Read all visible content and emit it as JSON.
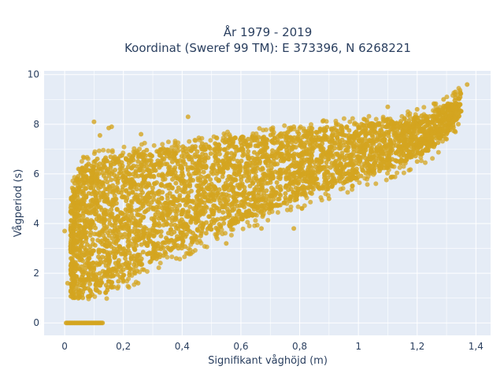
{
  "chart_data": {
    "type": "scatter",
    "title_line1": "År 1979 - 2019",
    "title_line2": "Koordinat (Sweref 99 TM): E 373396, N 6268221",
    "xlabel": "Signifikant våghöjd (m)",
    "ylabel": "Vågperiod (s)",
    "xlim": [
      -0.07,
      1.45
    ],
    "ylim": [
      -0.5,
      10.15
    ],
    "x_ticks": [
      0,
      0.2,
      0.4,
      0.6,
      0.8,
      1,
      1.2,
      1.4
    ],
    "x_tick_labels": [
      "0",
      "0,2",
      "0,4",
      "0,6",
      "0,8",
      "1",
      "1,2",
      "1,4"
    ],
    "y_ticks": [
      0,
      2,
      4,
      6,
      8,
      10
    ],
    "y_tick_labels": [
      "0",
      "2",
      "4",
      "6",
      "8",
      "10"
    ],
    "grid": true,
    "legend": "none",
    "colors": {
      "marker": "#d4a520",
      "plot_bg": "#e5ecf6",
      "grid": "#ffffff"
    },
    "band": {
      "x": [
        0.02,
        0.06,
        0.1,
        0.15,
        0.2,
        0.3,
        0.4,
        0.5,
        0.6,
        0.7,
        0.8,
        0.9,
        1.0,
        1.1,
        1.2,
        1.25,
        1.3,
        1.35
      ],
      "y_low": [
        1.0,
        1.0,
        1.1,
        1.2,
        1.7,
        2.5,
        3.0,
        3.6,
        4.1,
        4.6,
        5.0,
        5.4,
        5.8,
        6.2,
        6.7,
        7.0,
        7.6,
        8.4
      ],
      "y_high": [
        5.2,
        6.4,
        6.6,
        6.7,
        6.8,
        7.0,
        7.1,
        7.3,
        7.5,
        7.6,
        7.7,
        7.9,
        8.0,
        8.1,
        8.3,
        8.5,
        8.8,
        9.3
      ]
    },
    "zero_row": {
      "x_from": 0.005,
      "x_to": 0.13,
      "y": 0
    },
    "outliers": [
      {
        "x": 0.1,
        "y": 8.1
      },
      {
        "x": 0.16,
        "y": 7.9
      },
      {
        "x": 0.15,
        "y": 7.85
      },
      {
        "x": 0.42,
        "y": 8.3
      },
      {
        "x": 0.26,
        "y": 7.6
      },
      {
        "x": 0.12,
        "y": 7.55
      },
      {
        "x": 0.0,
        "y": 3.7
      },
      {
        "x": 0.01,
        "y": 1.6
      },
      {
        "x": 1.33,
        "y": 9.3
      },
      {
        "x": 1.37,
        "y": 9.6
      },
      {
        "x": 1.29,
        "y": 9.0
      },
      {
        "x": 1.34,
        "y": 8.0
      },
      {
        "x": 0.78,
        "y": 7.9
      },
      {
        "x": 1.2,
        "y": 8.6
      },
      {
        "x": 1.1,
        "y": 8.7
      },
      {
        "x": 0.67,
        "y": 3.8
      },
      {
        "x": 0.78,
        "y": 3.8
      },
      {
        "x": 0.55,
        "y": 3.2
      },
      {
        "x": 0.9,
        "y": 5.0
      },
      {
        "x": 0.25,
        "y": 1.6
      },
      {
        "x": 0.18,
        "y": 1.4
      },
      {
        "x": 0.46,
        "y": 3.3
      },
      {
        "x": 0.38,
        "y": 2.6
      },
      {
        "x": 1.2,
        "y": 6.5
      },
      {
        "x": 1.3,
        "y": 7.4
      },
      {
        "x": 1.1,
        "y": 6.4
      }
    ]
  }
}
